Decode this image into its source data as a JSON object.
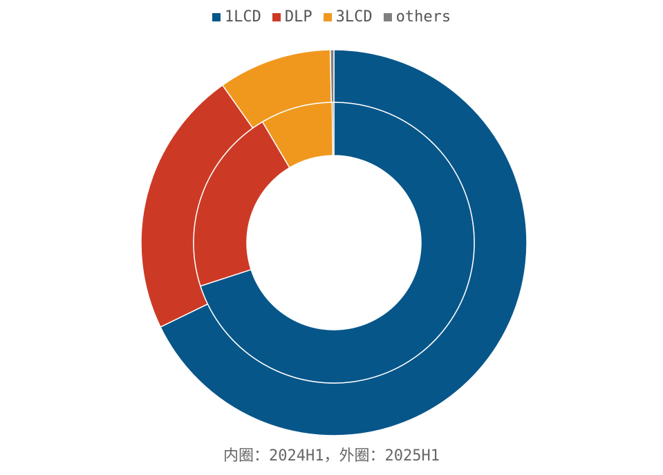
{
  "chart_data": {
    "type": "pie",
    "variant": "nested-donut",
    "categories": [
      "1LCD",
      "DLP",
      "3LCD",
      "others"
    ],
    "colors": {
      "1LCD": "#07568a",
      "DLP": "#cc3a25",
      "3LCD": "#f0981e",
      "others": "#808080"
    },
    "series": [
      {
        "ring": "inner",
        "period": "2024H1",
        "values": [
          70.0,
          21.5,
          8.3,
          0.2
        ]
      },
      {
        "ring": "outer",
        "period": "2025H1",
        "values": [
          67.8,
          22.4,
          9.5,
          0.3
        ]
      }
    ],
    "legend_position": "top-center",
    "caption": "内圈：2024H1，外圈：2025H1"
  }
}
